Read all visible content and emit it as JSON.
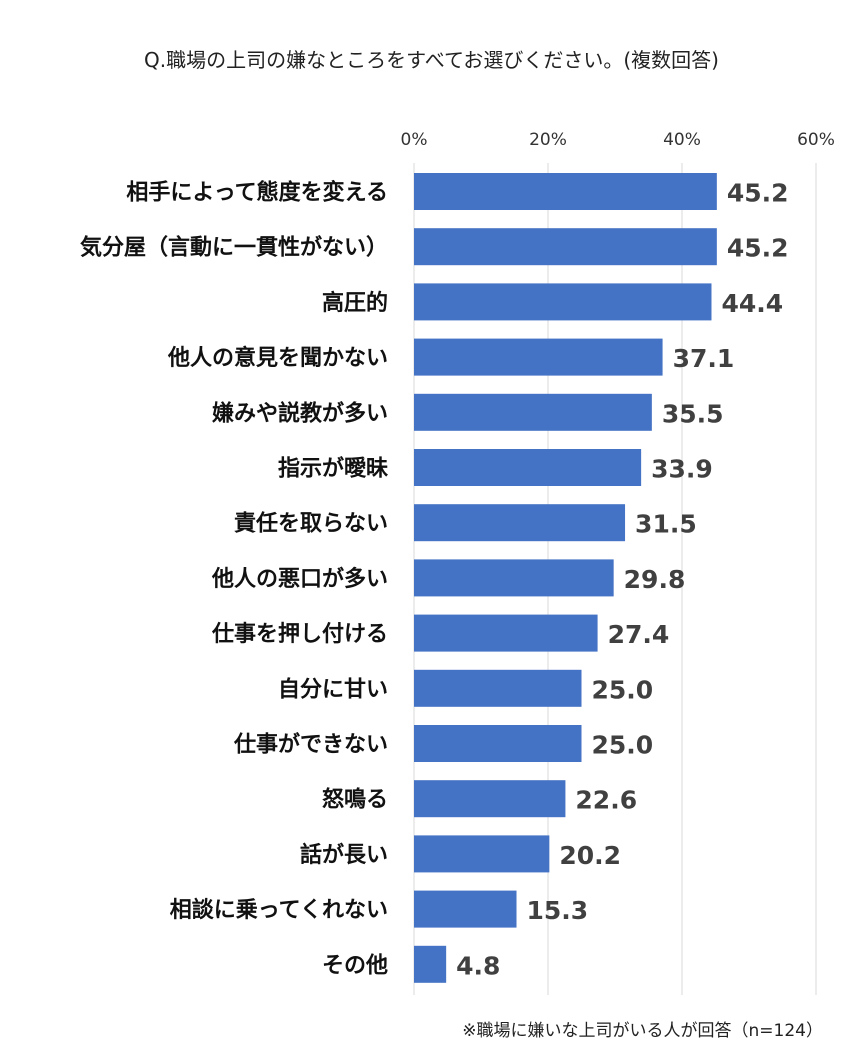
{
  "chart_data": {
    "type": "bar",
    "orientation": "horizontal",
    "title": "Q.職場の上司の嫌なところをすべてお選びください。(複数回答)",
    "categories": [
      "相手によって態度を変える",
      "気分屋（言動に一貫性がない）",
      "高圧的",
      "他人の意見を聞かない",
      "嫌みや説教が多い",
      "指示が曖昧",
      "責任を取らない",
      "他人の悪口が多い",
      "仕事を押し付ける",
      "自分に甘い",
      "仕事ができない",
      "怒鳴る",
      "話が長い",
      "相談に乗ってくれない",
      "その他"
    ],
    "values": [
      45.2,
      45.2,
      44.4,
      37.1,
      35.5,
      33.9,
      31.5,
      29.8,
      27.4,
      25.0,
      25.0,
      22.6,
      20.2,
      15.3,
      4.8
    ],
    "value_labels": [
      "45.2",
      "45.2",
      "44.4",
      "37.1",
      "35.5",
      "33.9",
      "31.5",
      "29.8",
      "27.4",
      "25.0",
      "25.0",
      "22.6",
      "20.2",
      "15.3",
      "4.8"
    ],
    "xlim": [
      0,
      60
    ],
    "xticks": [
      0,
      20,
      40,
      60
    ],
    "xtick_labels": [
      "0%",
      "20%",
      "40%",
      "60%"
    ],
    "axis_position": "top",
    "grid": true,
    "bar_color": "#4472C4",
    "footnote": "※職場に嫌いな上司がいる人が回答（n=124）"
  }
}
